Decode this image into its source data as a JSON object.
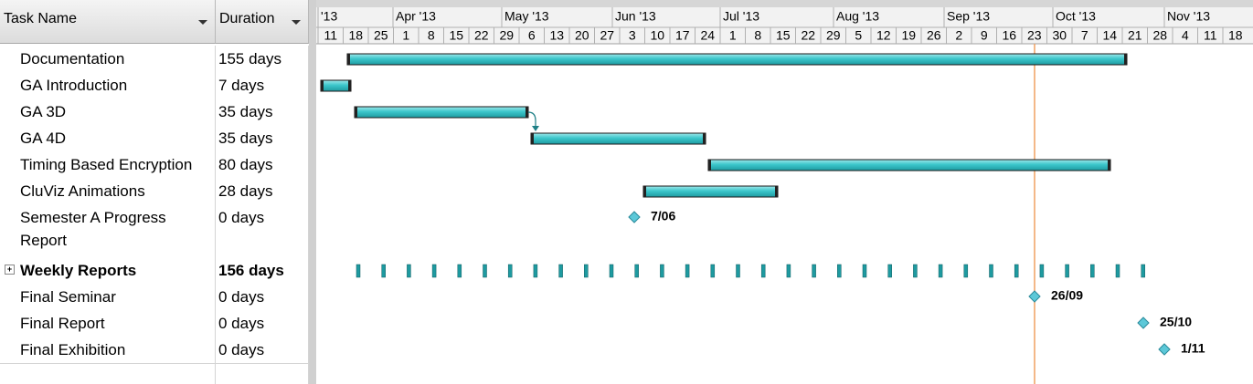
{
  "columns": {
    "task_name": "Task Name",
    "duration": "Duration"
  },
  "timescale": {
    "months": [
      "'13",
      "Apr '13",
      "May '13",
      "Jun '13",
      "Jul '13",
      "Aug '13",
      "Sep '13",
      "Oct '13",
      "Nov '13"
    ],
    "weeks": [
      "11",
      "18",
      "25",
      "1",
      "8",
      "15",
      "22",
      "29",
      "6",
      "13",
      "20",
      "27",
      "3",
      "10",
      "17",
      "24",
      "1",
      "8",
      "15",
      "22",
      "29",
      "5",
      "12",
      "19",
      "26",
      "2",
      "9",
      "16",
      "23",
      "30",
      "7",
      "14",
      "21",
      "28",
      "4",
      "11",
      "18"
    ]
  },
  "tasks": [
    {
      "name": "Documentation",
      "duration": "155 days"
    },
    {
      "name": "GA Introduction",
      "duration": "7 days"
    },
    {
      "name": "GA 3D",
      "duration": "35 days"
    },
    {
      "name": "GA 4D",
      "duration": "35 days"
    },
    {
      "name": "Timing Based Encryption",
      "duration": "80 days"
    },
    {
      "name": "CluViz Animations",
      "duration": "28 days"
    },
    {
      "name": "Semester A Progress Report",
      "duration": "0 days",
      "milestone_label": "7/06"
    },
    {
      "name": "Weekly Reports",
      "duration": "156 days",
      "summary": true
    },
    {
      "name": "Final Seminar",
      "duration": "0 days",
      "milestone_label": "26/09"
    },
    {
      "name": "Final Report",
      "duration": "0 days",
      "milestone_label": "25/10"
    },
    {
      "name": "Final Exhibition",
      "duration": "0 days",
      "milestone_label": "1/11"
    }
  ]
}
